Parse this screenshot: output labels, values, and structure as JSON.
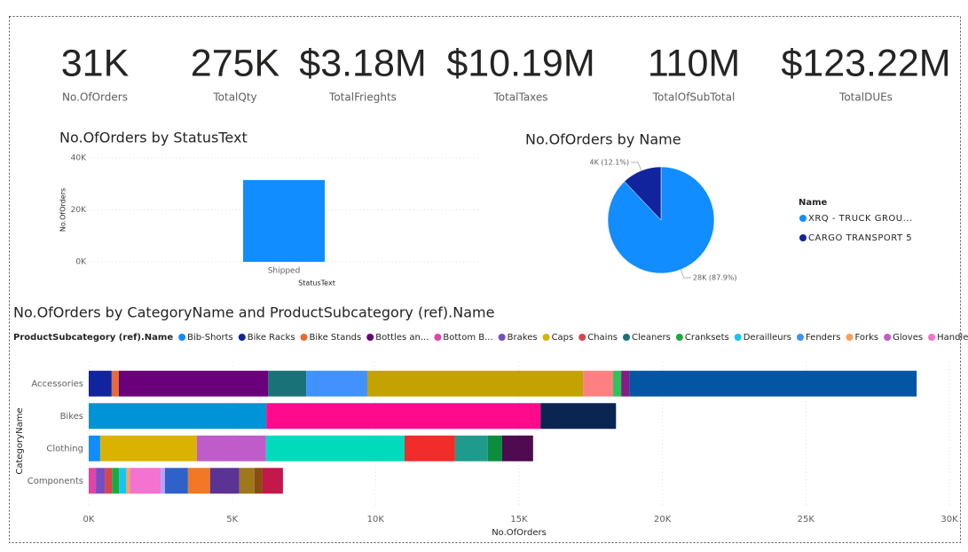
{
  "cards": [
    {
      "value": "31K",
      "label": "No.OfOrders"
    },
    {
      "value": "275K",
      "label": "TotalQty"
    },
    {
      "value": "$3.18M",
      "label": "TotalFrieghts"
    },
    {
      "value": "$10.19M",
      "label": "TotalTaxes"
    },
    {
      "value": "110M",
      "label": "TotalOfSubTotal"
    },
    {
      "value": "$123.22M",
      "label": "TotalDUEs"
    }
  ],
  "chart_data": [
    {
      "type": "bar",
      "title": "No.OfOrders by StatusText",
      "x_label": "StatusText",
      "y_label": "No.OfOrders",
      "categories": [
        "Shipped"
      ],
      "values": [
        31500
      ],
      "color": "#118DFF",
      "ylim": [
        0,
        40000
      ],
      "yticks": [
        {
          "value": 0,
          "label": "0K"
        },
        {
          "value": 20000,
          "label": "20K"
        },
        {
          "value": 40000,
          "label": "40K"
        }
      ],
      "grid": true
    },
    {
      "type": "pie",
      "title": "No.OfOrders by Name",
      "legend_title": "Name",
      "categories": [
        "XRQ - TRUCK GROU...",
        "CARGO TRANSPORT 5"
      ],
      "values": [
        27700,
        3800
      ],
      "value_labels": [
        "28K (87.9%)",
        "4K (12.1%)"
      ],
      "colors": [
        "#118DFF",
        "#12239E"
      ]
    },
    {
      "type": "bar",
      "horizontal": true,
      "stacked": true,
      "title": "No.OfOrders by CategoryName and ProductSubcategory (ref).Name",
      "legend_title": "ProductSubcategory (ref).Name",
      "x_label": "No.OfOrders",
      "y_label": "CategoryName",
      "categories": [
        "Accessories",
        "Bikes",
        "Clothing",
        "Components"
      ],
      "xlim": [
        0,
        30000
      ],
      "xticks": [
        {
          "value": 0,
          "label": "0K"
        },
        {
          "value": 5000,
          "label": "5K"
        },
        {
          "value": 10000,
          "label": "10K"
        },
        {
          "value": 15000,
          "label": "15K"
        },
        {
          "value": 20000,
          "label": "20K"
        },
        {
          "value": 25000,
          "label": "25K"
        },
        {
          "value": 30000,
          "label": "30K"
        }
      ],
      "grid": true,
      "series": [
        {
          "name": "Bib-Shorts",
          "color": "#118DFF",
          "values": [
            null,
            null,
            400,
            null
          ]
        },
        {
          "name": "Bike Racks",
          "color": "#12239E",
          "values": [
            800,
            null,
            null,
            null
          ]
        },
        {
          "name": "Bike Stands",
          "color": "#E66C37",
          "values": [
            250,
            null,
            null,
            null
          ]
        },
        {
          "name": "Bottles an...",
          "color": "#6B007B",
          "values": [
            5200,
            null,
            null,
            null
          ]
        },
        {
          "name": "Bottom B...",
          "color": "#E044A7",
          "values": [
            null,
            null,
            null,
            250
          ]
        },
        {
          "name": "Brakes",
          "color": "#744EC2",
          "values": [
            null,
            null,
            null,
            310
          ]
        },
        {
          "name": "Caps",
          "color": "#D9B300",
          "values": [
            null,
            null,
            3370,
            null
          ]
        },
        {
          "name": "Chains",
          "color": "#D64550",
          "values": [
            null,
            null,
            null,
            250
          ]
        },
        {
          "name": "Cleaners",
          "color": "#197278",
          "values": [
            1330,
            null,
            null,
            null
          ]
        },
        {
          "name": "Cranksets",
          "color": "#1AAB40",
          "values": [
            null,
            null,
            null,
            250
          ]
        },
        {
          "name": "Derailleurs",
          "color": "#15C6F4",
          "values": [
            null,
            null,
            null,
            250
          ]
        },
        {
          "name": "Fenders",
          "color": "#4092FF",
          "values": [
            2130,
            null,
            null,
            null
          ]
        },
        {
          "name": "Forks",
          "color": "#FFA058",
          "values": [
            null,
            null,
            null,
            120
          ]
        },
        {
          "name": "Gloves",
          "color": "#BE5DC9",
          "values": [
            null,
            null,
            2410,
            null
          ]
        },
        {
          "name": "Handleba",
          "color": "#F472D0",
          "values": [
            null,
            null,
            null,
            1080
          ]
        },
        {
          "color": "#B5A1FF",
          "values": [
            null,
            null,
            null,
            150
          ]
        },
        {
          "color": "#C4A200",
          "values": [
            7520,
            null,
            null,
            null
          ]
        },
        {
          "color": "#FF8080",
          "values": [
            1050,
            null,
            null,
            null
          ]
        },
        {
          "color": "#00DBBC",
          "values": [
            null,
            null,
            4830,
            null
          ]
        },
        {
          "color": "#2BC45C",
          "values": [
            280,
            null,
            null,
            null
          ]
        },
        {
          "color": "#8A1A85",
          "values": [
            280,
            null,
            null,
            null
          ]
        },
        {
          "color": "#0093D5",
          "values": [
            null,
            6190,
            null,
            null
          ]
        },
        {
          "color": "#2E62C8",
          "values": [
            null,
            null,
            null,
            800
          ]
        },
        {
          "color": "#F17925",
          "values": [
            null,
            null,
            null,
            770
          ]
        },
        {
          "color": "#FF0A8C",
          "values": [
            null,
            9560,
            null,
            null
          ]
        },
        {
          "color": "#5B3394",
          "values": [
            null,
            null,
            null,
            1020
          ]
        },
        {
          "color": "#A0771A",
          "values": [
            null,
            null,
            null,
            530
          ]
        },
        {
          "color": "#F22B2B",
          "values": [
            null,
            null,
            1760,
            null
          ]
        },
        {
          "color": "#1E9B8A",
          "values": [
            null,
            null,
            1140,
            null
          ]
        },
        {
          "color": "#0C8C3E",
          "values": [
            null,
            null,
            500,
            null
          ]
        },
        {
          "color": "#0356A3",
          "values": [
            10020,
            null,
            null,
            null
          ]
        },
        {
          "color": "#0A2552",
          "values": [
            null,
            2630,
            null,
            null
          ]
        },
        {
          "color": "#8A4C16",
          "values": [
            null,
            null,
            null,
            280
          ]
        },
        {
          "color": "#4F0A50",
          "values": [
            null,
            null,
            1080,
            null
          ]
        },
        {
          "color": "#C4174A",
          "values": [
            null,
            null,
            null,
            710
          ]
        }
      ]
    }
  ]
}
